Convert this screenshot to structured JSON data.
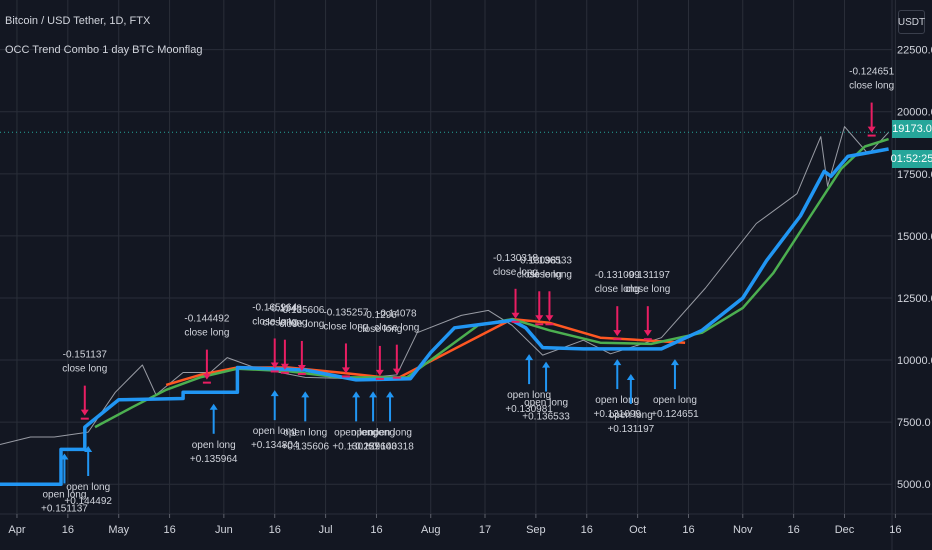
{
  "header": {
    "symbol": "Bitcoin / USD Tether, 1D, FTX",
    "indicator": "OCC Trend Combo 1 day BTC Moonflag",
    "currency": "USDT"
  },
  "price_tag": "19173.0",
  "countdown_tag": "01:52:25",
  "colors": {
    "background": "#131722",
    "grid": "#2a2e39",
    "text": "#d1d4dc",
    "candle_up": "#26a69a",
    "candle_down": "#ef5350",
    "trend_line": "#2196f3",
    "fast_ma": "#4caf50",
    "slow_ma": "#ff5722",
    "close_marker": "#e91e63",
    "open_marker": "#2196f3",
    "price_line": "#26a69a"
  },
  "chart_data": {
    "type": "line",
    "y_ticks": [
      5000,
      7500,
      10000,
      12500,
      15000,
      17500,
      20000,
      22500
    ],
    "y_tick_labels": [
      "5000.0",
      "7500.0",
      "10000.0",
      "12500.0",
      "15000.0",
      "17500.0",
      "20000.0",
      "22500.0"
    ],
    "ylim": [
      3800,
      24500
    ],
    "x_ticks": [
      {
        "label": "Apr",
        "date": "2020-04-01"
      },
      {
        "label": "16",
        "date": "2020-04-16"
      },
      {
        "label": "May",
        "date": "2020-05-01"
      },
      {
        "label": "16",
        "date": "2020-05-16"
      },
      {
        "label": "Jun",
        "date": "2020-06-01"
      },
      {
        "label": "16",
        "date": "2020-06-16"
      },
      {
        "label": "Jul",
        "date": "2020-07-01"
      },
      {
        "label": "16",
        "date": "2020-07-16"
      },
      {
        "label": "Aug",
        "date": "2020-08-01"
      },
      {
        "label": "17",
        "date": "2020-08-17"
      },
      {
        "label": "Sep",
        "date": "2020-09-01"
      },
      {
        "label": "16",
        "date": "2020-09-16"
      },
      {
        "label": "Oct",
        "date": "2020-10-01"
      },
      {
        "label": "16",
        "date": "2020-10-16"
      },
      {
        "label": "Nov",
        "date": "2020-11-01"
      },
      {
        "label": "16",
        "date": "2020-11-16"
      },
      {
        "label": "Dec",
        "date": "2020-12-01"
      },
      {
        "label": "16",
        "date": "2020-12-16"
      }
    ],
    "xlim": [
      "2020-03-27",
      "2020-12-15"
    ],
    "current_price": 19173.0,
    "series": [
      {
        "key": "trend",
        "color": "#2196f3",
        "points": [
          [
            "2020-03-27",
            5000
          ],
          [
            "2020-04-14",
            5000
          ],
          [
            "2020-04-14",
            6400
          ],
          [
            "2020-04-21",
            6400
          ],
          [
            "2020-04-21",
            7300
          ],
          [
            "2020-05-01",
            8400
          ],
          [
            "2020-05-20",
            8450
          ],
          [
            "2020-05-20",
            8700
          ],
          [
            "2020-06-05",
            8700
          ],
          [
            "2020-06-05",
            9700
          ],
          [
            "2020-06-25",
            9600
          ],
          [
            "2020-07-10",
            9200
          ],
          [
            "2020-07-26",
            9250
          ],
          [
            "2020-08-01",
            10300
          ],
          [
            "2020-08-08",
            11300
          ],
          [
            "2020-08-25",
            11600
          ],
          [
            "2020-08-29",
            11300
          ],
          [
            "2020-09-03",
            10500
          ],
          [
            "2020-09-15",
            10450
          ],
          [
            "2020-10-08",
            10450
          ],
          [
            "2020-10-20",
            11200
          ],
          [
            "2020-11-01",
            12500
          ],
          [
            "2020-11-08",
            14000
          ],
          [
            "2020-11-18",
            15800
          ],
          [
            "2020-11-25",
            17600
          ],
          [
            "2020-11-27",
            17400
          ],
          [
            "2020-12-02",
            18200
          ],
          [
            "2020-12-10",
            18400
          ],
          [
            "2020-12-14",
            18500
          ]
        ]
      },
      {
        "key": "fast_ma",
        "color": "#4caf50",
        "points": [
          [
            "2020-04-24",
            7300
          ],
          [
            "2020-05-05",
            8100
          ],
          [
            "2020-05-15",
            8800
          ],
          [
            "2020-05-25",
            9300
          ],
          [
            "2020-06-05",
            9650
          ],
          [
            "2020-06-20",
            9550
          ],
          [
            "2020-07-05",
            9300
          ],
          [
            "2020-07-25",
            9300
          ],
          [
            "2020-08-05",
            10400
          ],
          [
            "2020-08-15",
            11400
          ],
          [
            "2020-08-25",
            11650
          ],
          [
            "2020-09-05",
            11200
          ],
          [
            "2020-09-20",
            10700
          ],
          [
            "2020-10-05",
            10650
          ],
          [
            "2020-10-20",
            11100
          ],
          [
            "2020-11-01",
            12100
          ],
          [
            "2020-11-10",
            13500
          ],
          [
            "2020-11-20",
            15600
          ],
          [
            "2020-11-30",
            17700
          ],
          [
            "2020-12-07",
            18600
          ],
          [
            "2020-12-14",
            18900
          ]
        ]
      },
      {
        "key": "slow_ma",
        "color": "#ff5722",
        "points": [
          [
            "2020-05-15",
            9000
          ],
          [
            "2020-05-25",
            9400
          ],
          [
            "2020-06-05",
            9700
          ],
          [
            "2020-06-20",
            9700
          ],
          [
            "2020-07-05",
            9500
          ],
          [
            "2020-07-22",
            9250
          ],
          [
            "2020-08-25",
            11650
          ],
          [
            "2020-09-05",
            11500
          ],
          [
            "2020-09-20",
            10900
          ],
          [
            "2020-10-15",
            10700
          ]
        ]
      },
      {
        "key": "price",
        "color": "#d1d4dc",
        "points": [
          [
            "2020-03-27",
            6600
          ],
          [
            "2020-04-05",
            6900
          ],
          [
            "2020-04-12",
            6900
          ],
          [
            "2020-04-22",
            7100
          ],
          [
            "2020-04-30",
            8700
          ],
          [
            "2020-05-08",
            9800
          ],
          [
            "2020-05-12",
            8600
          ],
          [
            "2020-05-20",
            9500
          ],
          [
            "2020-05-28",
            9500
          ],
          [
            "2020-06-02",
            10100
          ],
          [
            "2020-06-10",
            9700
          ],
          [
            "2020-06-25",
            9300
          ],
          [
            "2020-07-10",
            9250
          ],
          [
            "2020-07-22",
            9400
          ],
          [
            "2020-07-28",
            11100
          ],
          [
            "2020-08-10",
            11800
          ],
          [
            "2020-08-18",
            12000
          ],
          [
            "2020-08-25",
            11400
          ],
          [
            "2020-09-03",
            10200
          ],
          [
            "2020-09-15",
            10800
          ],
          [
            "2020-09-23",
            10250
          ],
          [
            "2020-10-08",
            10900
          ],
          [
            "2020-10-21",
            12900
          ],
          [
            "2020-11-05",
            15500
          ],
          [
            "2020-11-17",
            16700
          ],
          [
            "2020-11-24",
            19000
          ],
          [
            "2020-11-26",
            17000
          ],
          [
            "2020-12-01",
            19400
          ],
          [
            "2020-12-08",
            18300
          ],
          [
            "2020-12-14",
            19173
          ]
        ]
      }
    ],
    "signals": [
      {
        "type": "close",
        "date": "2020-04-21",
        "price": 7600,
        "label": "-0.151137 close long"
      },
      {
        "type": "close",
        "date": "2020-05-27",
        "price": 9050,
        "label": "-0.144492 close long"
      },
      {
        "type": "close",
        "date": "2020-06-16",
        "price": 9500,
        "label": "-0.165964 close long"
      },
      {
        "type": "close",
        "date": "2020-06-19",
        "price": 9450,
        "label": "-0.1348 close long"
      },
      {
        "type": "close",
        "date": "2020-06-24",
        "price": 9400,
        "label": "-0.135606 close long"
      },
      {
        "type": "close",
        "date": "2020-07-07",
        "price": 9300,
        "label": "-0.135257 close long"
      },
      {
        "type": "close",
        "date": "2020-07-17",
        "price": 9200,
        "label": "-0.1296 close long"
      },
      {
        "type": "close",
        "date": "2020-07-22",
        "price": 9250,
        "label": "-0.14078 close long"
      },
      {
        "type": "close",
        "date": "2020-08-26",
        "price": 11500,
        "label": "-0.130318 close long"
      },
      {
        "type": "close",
        "date": "2020-09-02",
        "price": 11400,
        "label": "-0.130981 close long"
      },
      {
        "type": "close",
        "date": "2020-09-05",
        "price": 11400,
        "label": "-0.136533 close long"
      },
      {
        "type": "close",
        "date": "2020-09-25",
        "price": 10800,
        "label": "-0.131099 close long"
      },
      {
        "type": "close",
        "date": "2020-10-04",
        "price": 10800,
        "label": "-0.131197 close long"
      },
      {
        "type": "close",
        "date": "2020-12-09",
        "price": 19000,
        "label": "-0.124651 close long"
      },
      {
        "type": "open",
        "date": "2020-04-15",
        "price": 6400,
        "label": "open long +0.151137"
      },
      {
        "type": "open",
        "date": "2020-04-22",
        "price": 6700,
        "label": "open long +0.144492"
      },
      {
        "type": "open",
        "date": "2020-05-29",
        "price": 8400,
        "label": "open long +0.135964"
      },
      {
        "type": "open",
        "date": "2020-06-16",
        "price": 8950,
        "label": "open long +0.134804"
      },
      {
        "type": "open",
        "date": "2020-06-25",
        "price": 8900,
        "label": "open long +0.135606"
      },
      {
        "type": "open",
        "date": "2020-07-10",
        "price": 8900,
        "label": "open long +0.130257"
      },
      {
        "type": "open",
        "date": "2020-07-15",
        "price": 8900,
        "label": "open long +0.129603"
      },
      {
        "type": "open",
        "date": "2020-07-20",
        "price": 8900,
        "label": "open long +0.140318"
      },
      {
        "type": "open",
        "date": "2020-08-30",
        "price": 10400,
        "label": "open long +0.130981"
      },
      {
        "type": "open",
        "date": "2020-09-04",
        "price": 10100,
        "label": "open long +0.136533"
      },
      {
        "type": "open",
        "date": "2020-09-25",
        "price": 10200,
        "label": "open long +0.131099"
      },
      {
        "type": "open",
        "date": "2020-09-29",
        "price": 9600,
        "label": "open long +0.131197"
      },
      {
        "type": "open",
        "date": "2020-10-12",
        "price": 10200,
        "label": "open long +0.124651"
      }
    ]
  }
}
